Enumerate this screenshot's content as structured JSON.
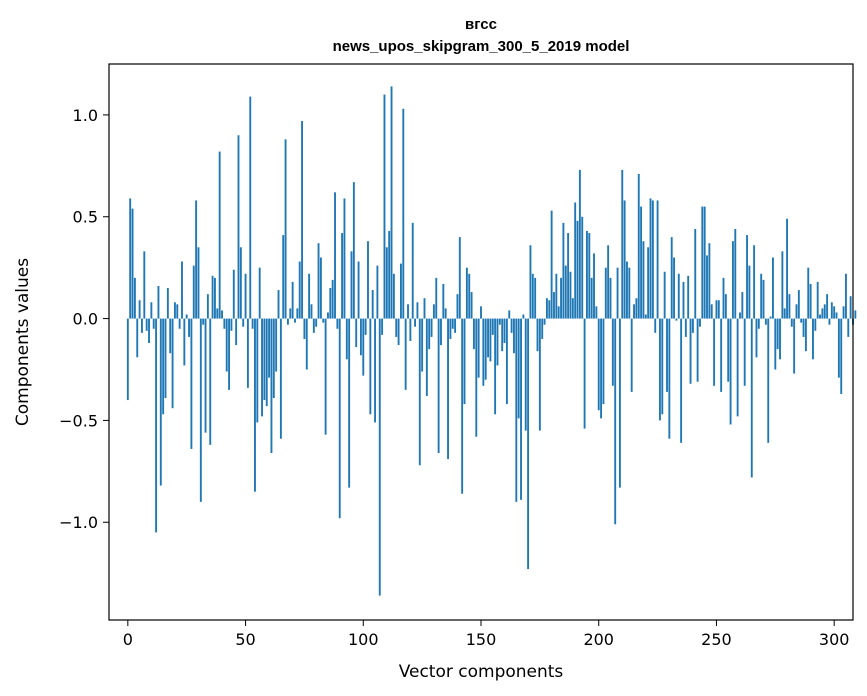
{
  "chart_data": {
    "type": "bar",
    "title_line1": "вгсс",
    "title_line2": "news_upos_skipgram_300_5_2019 model",
    "xlabel": "Vector components",
    "ylabel": "Components values",
    "xlim": [
      -8,
      308
    ],
    "ylim": [
      -1.48,
      1.25
    ],
    "xticks": [
      0,
      50,
      100,
      150,
      200,
      250,
      300
    ],
    "yticks": [
      -1.0,
      -0.5,
      0.0,
      0.5,
      1.0
    ],
    "ytick_labels": [
      "−1.0",
      "−0.5",
      "0.0",
      "0.5",
      "1.0"
    ],
    "bar_color": "#1f77b4",
    "grid": false,
    "x_start": 0,
    "values": [
      -0.4,
      0.59,
      0.54,
      0.2,
      -0.19,
      0.09,
      -0.07,
      0.33,
      -0.06,
      -0.12,
      0.08,
      -0.05,
      -1.05,
      0.16,
      -0.82,
      -0.47,
      -0.39,
      0.15,
      -0.17,
      -0.44,
      0.08,
      0.07,
      -0.05,
      0.28,
      -0.23,
      0.02,
      -0.09,
      -0.64,
      0.26,
      0.58,
      0.35,
      -0.9,
      -0.03,
      -0.56,
      0.12,
      -0.62,
      0.21,
      0.2,
      0.05,
      0.82,
      0.04,
      -0.05,
      -0.26,
      -0.35,
      -0.06,
      0.24,
      -0.13,
      0.9,
      0.35,
      -0.04,
      0.22,
      -0.34,
      1.09,
      -0.05,
      -0.85,
      -0.51,
      0.25,
      -0.48,
      -0.4,
      -0.43,
      -0.29,
      -0.66,
      -0.39,
      -0.26,
      0.14,
      -0.59,
      0.41,
      0.88,
      -0.03,
      0.05,
      0.18,
      -0.02,
      0.05,
      0.28,
      0.97,
      -0.1,
      -0.25,
      0.22,
      0.07,
      -0.07,
      -0.04,
      0.37,
      0.3,
      -0.02,
      -0.57,
      0.03,
      0.15,
      0.19,
      0.62,
      -0.05,
      -0.98,
      0.42,
      0.59,
      -0.2,
      -0.83,
      0.33,
      0.67,
      -0.14,
      0.28,
      -0.18,
      -0.28,
      -0.08,
      0.38,
      -0.47,
      0.14,
      -0.51,
      0.26,
      -1.36,
      -0.08,
      1.1,
      0.35,
      0.43,
      1.14,
      0.22,
      -0.09,
      -0.13,
      0.27,
      1.03,
      -0.35,
      0.07,
      -0.11,
      0.47,
      -0.04,
      0.08,
      -0.72,
      -0.26,
      0.1,
      -0.38,
      -0.15,
      -0.09,
      0.07,
      0.2,
      -0.66,
      -0.13,
      0.17,
      0.05,
      -0.69,
      -0.1,
      -0.05,
      -0.07,
      0.12,
      0.4,
      -0.86,
      -0.42,
      0.25,
      0.22,
      0.13,
      -0.15,
      -0.58,
      -0.29,
      0.06,
      -0.33,
      -0.3,
      -0.19,
      -0.21,
      -0.08,
      -0.47,
      -0.23,
      -0.03,
      -0.16,
      -0.12,
      -0.42,
      0.04,
      -0.07,
      -0.17,
      -0.9,
      -0.49,
      -0.89,
      0.02,
      -0.55,
      -1.23,
      0.36,
      0.22,
      0.2,
      -0.16,
      -0.55,
      -0.1,
      -0.03,
      0.1,
      0.09,
      0.53,
      0.13,
      0.22,
      0.06,
      0.2,
      0.47,
      0.26,
      0.42,
      0.23,
      0.1,
      0.57,
      0.48,
      0.73,
      0.5,
      -0.54,
      0.43,
      0.42,
      0.2,
      0.32,
      0.06,
      -0.45,
      -0.49,
      -0.42,
      0.25,
      0.36,
      0.2,
      -0.33,
      -1.01,
      0.25,
      -0.83,
      0.73,
      0.58,
      0.28,
      0.25,
      -0.36,
      0.07,
      0.1,
      0.71,
      0.55,
      0.38,
      0.02,
      0.35,
      0.59,
      0.58,
      -0.07,
      0.58,
      -0.5,
      -0.47,
      0.23,
      -0.36,
      -0.59,
      0.4,
      0.3,
      -0.01,
      0.22,
      -0.61,
      0.18,
      -0.09,
      0.21,
      -0.32,
      -0.07,
      0.44,
      -0.31,
      -0.04,
      0.55,
      0.55,
      0.31,
      0.37,
      0.07,
      -0.33,
      0.09,
      0.09,
      -0.36,
      0.2,
      0.12,
      -0.31,
      -0.52,
      0.38,
      0.44,
      -0.48,
      0.03,
      0.13,
      -0.33,
      0.41,
      0.26,
      -0.78,
      0.36,
      -0.19,
      -0.05,
      0.22,
      0.19,
      -0.03,
      -0.61,
      0.01,
      0.3,
      -0.25,
      -0.15,
      -0.2,
      0.33,
      0.05,
      0.49,
      0.12,
      -0.04,
      -0.27,
      0.07,
      0.14,
      -0.02,
      -0.09,
      -0.16,
      0.25,
      0.17,
      -0.2,
      -0.06,
      0.18,
      0.02,
      0.05,
      0.07,
      0.12,
      -0.03,
      0.08,
      0.06,
      0.03,
      -0.29,
      -0.37,
      0.06,
      0.22,
      -0.09,
      0.11,
      -0.03,
      0.04
    ]
  }
}
